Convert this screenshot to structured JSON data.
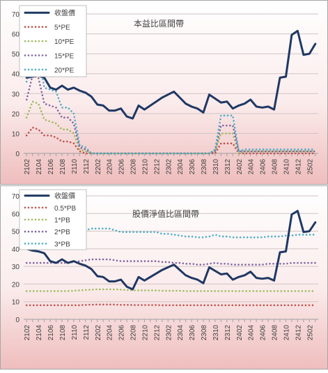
{
  "chart_data": [
    {
      "type": "line",
      "title": "本益比區間帶",
      "xlabel": "",
      "ylabel": "",
      "ylim": [
        0,
        70
      ],
      "yticks": [
        0,
        10,
        20,
        30,
        40,
        50,
        60,
        70
      ],
      "grid": true,
      "legend_position": "top-left",
      "x": [
        "2102",
        "2103",
        "2104",
        "2105",
        "2106",
        "2107",
        "2108",
        "2109",
        "2110",
        "2111",
        "2112",
        "2201",
        "2202",
        "2203",
        "2204",
        "2205",
        "2206",
        "2207",
        "2208",
        "2209",
        "2210",
        "2211",
        "2212",
        "2301",
        "2302",
        "2303",
        "2304",
        "2305",
        "2306",
        "2307",
        "2308",
        "2309",
        "2310",
        "2311",
        "2312",
        "2401",
        "2402",
        "2403",
        "2404",
        "2405",
        "2406",
        "2407",
        "2408",
        "2409",
        "2410",
        "2411",
        "2412",
        "2501",
        "2502",
        "2503"
      ],
      "xtick_labels": [
        "2102",
        "2104",
        "2106",
        "2108",
        "2110",
        "2112",
        "2202",
        "2204",
        "2206",
        "2208",
        "2210",
        "2212",
        "2302",
        "2304",
        "2306",
        "2308",
        "2310",
        "2312",
        "2402",
        "2404",
        "2406",
        "2408",
        "2410",
        "2412",
        "2502"
      ],
      "series": [
        {
          "name": "收盤價",
          "color": "#1f3864",
          "style": "solid",
          "values": [
            38,
            38.5,
            39,
            38,
            33,
            32,
            34,
            32,
            33,
            31.5,
            30.5,
            28.5,
            24.5,
            24,
            21.5,
            21.5,
            22.5,
            18.5,
            17.5,
            24,
            22,
            24,
            26,
            28,
            29.5,
            31,
            28,
            25,
            23.5,
            22.5,
            20.5,
            29.5,
            27.5,
            25.5,
            26,
            22.5,
            24,
            25,
            27,
            23.5,
            23,
            23.5,
            22,
            38,
            38.5,
            59.5,
            61.5,
            49.5,
            50,
            55
          ]
        },
        {
          "name": "5*PE",
          "color": "#c0504d",
          "style": "dotted",
          "values": [
            9,
            13,
            12,
            9,
            9,
            8,
            6,
            6,
            5,
            1,
            0,
            0,
            0,
            0,
            0,
            0,
            0,
            0,
            0,
            0,
            0,
            0,
            0,
            0,
            0,
            0,
            0,
            0,
            0,
            0,
            0,
            0,
            0,
            5,
            5,
            5,
            0,
            0,
            0,
            0,
            0,
            0,
            0,
            0,
            0,
            0,
            0,
            0,
            0,
            0
          ]
        },
        {
          "name": "10*PE",
          "color": "#9bbb59",
          "style": "dotted",
          "values": [
            18,
            26,
            25,
            17,
            16,
            15,
            12,
            12,
            10,
            2,
            1,
            0,
            0,
            0,
            0,
            0,
            0,
            0,
            0,
            0,
            0,
            0,
            0,
            0,
            0,
            0,
            0,
            0,
            0,
            0,
            0,
            0,
            1,
            10,
            10,
            10,
            0,
            1,
            1,
            1,
            1,
            1,
            1,
            1,
            1,
            1,
            1,
            1,
            1,
            1
          ]
        },
        {
          "name": "15*PE",
          "color": "#8064a2",
          "style": "dotted",
          "values": [
            27,
            39,
            38,
            25,
            24,
            23,
            18,
            18,
            15,
            3,
            2,
            0,
            0,
            0,
            0,
            0,
            0,
            0,
            0,
            0,
            0,
            0,
            0,
            0,
            0,
            0,
            0,
            0,
            0,
            0,
            0,
            0,
            1,
            14,
            14,
            14,
            1,
            1,
            1,
            1,
            1,
            1,
            1,
            1,
            1,
            1,
            1,
            1,
            1,
            1
          ]
        },
        {
          "name": "20*PE",
          "color": "#4bacc6",
          "style": "dotted",
          "values": [
            36,
            52,
            51,
            33,
            32,
            31,
            23,
            23,
            20,
            4,
            3,
            0,
            0,
            0,
            0,
            0,
            0,
            0,
            0,
            0,
            0,
            0,
            0,
            0,
            0,
            0,
            0,
            0,
            0,
            0,
            0,
            0,
            2,
            19,
            19,
            19,
            1,
            2,
            2,
            2,
            2,
            2,
            2,
            2,
            2,
            2,
            2,
            2,
            2,
            2
          ]
        }
      ]
    },
    {
      "type": "line",
      "title": "股價淨值比區間帶",
      "xlabel": "",
      "ylabel": "",
      "ylim": [
        0,
        70
      ],
      "yticks": [
        0,
        10,
        20,
        30,
        40,
        50,
        60,
        70
      ],
      "grid": true,
      "legend_position": "top-left",
      "x": [
        "2102",
        "2103",
        "2104",
        "2105",
        "2106",
        "2107",
        "2108",
        "2109",
        "2110",
        "2111",
        "2112",
        "2201",
        "2202",
        "2203",
        "2204",
        "2205",
        "2206",
        "2207",
        "2208",
        "2209",
        "2210",
        "2211",
        "2212",
        "2301",
        "2302",
        "2303",
        "2304",
        "2305",
        "2306",
        "2307",
        "2308",
        "2309",
        "2310",
        "2311",
        "2312",
        "2401",
        "2402",
        "2403",
        "2404",
        "2405",
        "2406",
        "2407",
        "2408",
        "2409",
        "2410",
        "2411",
        "2412",
        "2501",
        "2502",
        "2503"
      ],
      "xtick_labels": [
        "2102",
        "2104",
        "2106",
        "2108",
        "2110",
        "2112",
        "2202",
        "2204",
        "2206",
        "2208",
        "2210",
        "2212",
        "2302",
        "2304",
        "2306",
        "2308",
        "2310",
        "2312",
        "2402",
        "2404",
        "2406",
        "2408",
        "2410",
        "2412",
        "2502"
      ],
      "series": [
        {
          "name": "收盤價",
          "color": "#1f3864",
          "style": "solid",
          "values": [
            40,
            39,
            38.5,
            37.5,
            33,
            32,
            34,
            32,
            33,
            31.5,
            30.5,
            28.5,
            24.5,
            24,
            21.5,
            21.5,
            22.5,
            18.5,
            17,
            24,
            22,
            24,
            26,
            28,
            29.5,
            31,
            28,
            25,
            23.5,
            22.5,
            20.5,
            29.5,
            27.5,
            25.5,
            26,
            22.5,
            24,
            25,
            27,
            23.5,
            23,
            23.5,
            22,
            38,
            38.5,
            59.5,
            61.5,
            49.5,
            50,
            55
          ]
        },
        {
          "name": "0.5*PB",
          "color": "#c0504d",
          "style": "dotted",
          "values": [
            8,
            8,
            8,
            8,
            8,
            8,
            8,
            8,
            8,
            8,
            8.2,
            8.3,
            8.4,
            8.4,
            8.4,
            8.4,
            8.2,
            8.2,
            8.1,
            8.1,
            8.1,
            8.1,
            8.1,
            8,
            8,
            8,
            8,
            8,
            8,
            8,
            8,
            8,
            8,
            8,
            8,
            8,
            8,
            8,
            8,
            8,
            8,
            8,
            8,
            8,
            8,
            8,
            8,
            8,
            8,
            8
          ]
        },
        {
          "name": "1*PB",
          "color": "#9bbb59",
          "style": "dotted",
          "values": [
            16,
            16,
            16,
            16,
            16,
            16,
            16,
            16,
            16.2,
            16.4,
            16.6,
            16.8,
            17,
            17,
            17,
            17,
            16.8,
            16.6,
            16.4,
            16.4,
            16.4,
            16.4,
            16.4,
            16.2,
            16.2,
            16.2,
            16.2,
            16,
            16,
            16,
            16,
            16,
            16,
            16,
            16,
            16,
            16,
            16,
            16,
            16,
            16,
            16,
            16,
            16,
            16,
            16,
            16,
            16,
            16,
            16
          ]
        },
        {
          "name": "2*PB",
          "color": "#8064a2",
          "style": "dotted",
          "values": [
            32,
            32,
            32,
            32,
            32,
            32,
            32,
            32,
            32.5,
            33,
            33.5,
            34,
            34,
            34,
            34,
            33.5,
            33,
            33,
            33,
            33,
            33,
            33,
            33,
            32.5,
            32.5,
            32,
            32,
            31.5,
            31.5,
            31,
            31,
            31.5,
            32,
            31.5,
            31.5,
            31,
            31,
            31,
            31,
            31,
            31,
            31.5,
            31.5,
            31.5,
            31.5,
            32,
            32,
            32,
            32,
            32
          ]
        },
        {
          "name": "3*PB",
          "color": "#4bacc6",
          "style": "dotted",
          "values": [
            48,
            48,
            48,
            48,
            48,
            48,
            48,
            48,
            48.5,
            49.5,
            50.5,
            51.5,
            51.5,
            51.5,
            51.5,
            50.5,
            49.5,
            49.5,
            49.5,
            49.5,
            49.5,
            49.5,
            49.5,
            48.5,
            48.5,
            48,
            47.5,
            47,
            47,
            46.5,
            46.5,
            47,
            48,
            47,
            47,
            46.5,
            46.5,
            46.5,
            46.5,
            46.5,
            46.5,
            47,
            47,
            47,
            47.5,
            47.5,
            48,
            48,
            48,
            48
          ]
        }
      ]
    }
  ]
}
